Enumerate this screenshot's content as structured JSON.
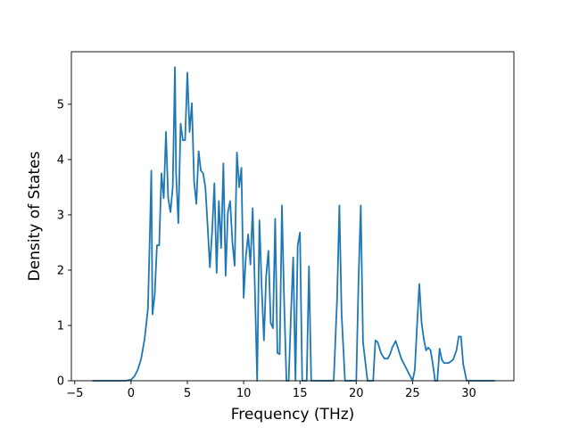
{
  "chart_data": {
    "type": "line",
    "title": "",
    "xlabel": "Frequency (THz)",
    "ylabel": "Density of States",
    "xlim": [
      -5.3,
      34.0
    ],
    "ylim": [
      0,
      5.95
    ],
    "grid": false,
    "legend": "none",
    "x_ticks": [
      -5,
      0,
      5,
      10,
      15,
      20,
      25,
      30
    ],
    "y_ticks": [
      0,
      1,
      2,
      3,
      4,
      5
    ],
    "series": [
      {
        "color": "#1f77b4",
        "x": [
          -3.4,
          -0.5,
          0.0,
          0.3,
          0.6,
          0.9,
          1.2,
          1.5,
          1.7,
          1.8,
          1.9,
          2.1,
          2.3,
          2.5,
          2.7,
          2.9,
          3.1,
          3.3,
          3.5,
          3.7,
          3.9,
          4.0,
          4.2,
          4.4,
          4.6,
          4.8,
          5.0,
          5.2,
          5.4,
          5.6,
          5.8,
          6.0,
          6.2,
          6.4,
          6.6,
          6.8,
          7.0,
          7.2,
          7.4,
          7.6,
          7.8,
          8.0,
          8.2,
          8.4,
          8.6,
          8.8,
          9.0,
          9.2,
          9.4,
          9.6,
          9.8,
          10.0,
          10.2,
          10.4,
          10.6,
          10.8,
          11.0,
          11.2,
          11.4,
          11.6,
          11.8,
          12.0,
          12.2,
          12.4,
          12.6,
          12.8,
          13.0,
          13.2,
          13.4,
          13.6,
          13.8,
          14.0,
          14.2,
          14.4,
          14.6,
          14.8,
          15.0,
          15.2,
          15.4,
          15.6,
          15.8,
          16.0,
          16.3,
          17.5,
          18.0,
          18.3,
          18.5,
          18.7,
          19.0,
          19.5,
          20.0,
          20.2,
          20.4,
          20.6,
          21.0,
          21.5,
          21.7,
          21.9,
          22.2,
          22.5,
          22.8,
          23.0,
          23.2,
          23.5,
          24.0,
          25.0,
          25.2,
          25.4,
          25.6,
          25.8,
          26.0,
          26.2,
          26.4,
          26.6,
          26.8,
          27.0,
          27.2,
          27.4,
          27.6,
          27.8,
          28.2,
          28.6,
          28.9,
          29.1,
          29.3,
          29.5,
          29.8,
          30.3,
          32.3
        ],
        "y": [
          0,
          0,
          0.02,
          0.08,
          0.2,
          0.4,
          0.75,
          1.3,
          2.9,
          3.8,
          1.2,
          1.55,
          2.45,
          2.45,
          3.75,
          3.3,
          4.5,
          3.3,
          3.05,
          3.5,
          5.67,
          3.75,
          2.85,
          4.65,
          4.35,
          4.35,
          5.57,
          4.5,
          5.02,
          3.6,
          3.2,
          4.15,
          3.8,
          3.75,
          3.5,
          2.8,
          2.05,
          2.7,
          3.57,
          1.95,
          3.25,
          2.4,
          3.93,
          1.9,
          3.05,
          3.25,
          2.5,
          2.08,
          4.13,
          3.5,
          3.85,
          1.5,
          2.25,
          2.65,
          2.1,
          3.12,
          1.65,
          0,
          2.9,
          1.7,
          0.73,
          1.9,
          2.35,
          1.05,
          0.95,
          2.93,
          0.5,
          0.48,
          3.17,
          1.4,
          0,
          0,
          1.2,
          2.23,
          0,
          2.45,
          2.68,
          0,
          0,
          0,
          2.07,
          0,
          0,
          0,
          0,
          1.5,
          3.17,
          1.2,
          0,
          0,
          0,
          1.8,
          3.17,
          0.7,
          0,
          0,
          0.73,
          0.7,
          0.5,
          0.4,
          0.4,
          0.48,
          0.6,
          0.72,
          0.4,
          0,
          0.2,
          1.0,
          1.75,
          1.05,
          0.75,
          0.55,
          0.6,
          0.55,
          0.3,
          0,
          0,
          0.58,
          0.38,
          0.32,
          0.32,
          0.38,
          0.55,
          0.8,
          0.8,
          0.3,
          0,
          0,
          0
        ]
      }
    ]
  }
}
